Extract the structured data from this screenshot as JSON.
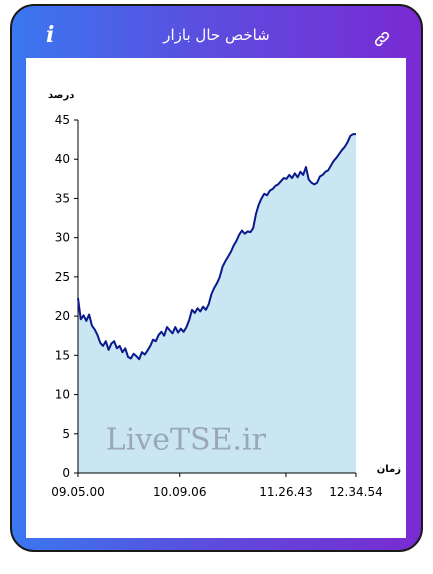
{
  "header": {
    "title": "شاخص حال بازار",
    "info_icon": "info-icon",
    "link_icon": "link-icon"
  },
  "colors": {
    "line": "#0a1a8c",
    "fill": "#c9e6f2",
    "gradient_start": "#3a78f0",
    "gradient_end": "#7a2ad2"
  },
  "watermark": "LiveTSE.ir",
  "chart_data": {
    "type": "area",
    "ylabel": "درصد",
    "xlabel": "زمان",
    "ylim": [
      0,
      45
    ],
    "yticks": [
      "0",
      "5",
      "10",
      "15",
      "20",
      "25",
      "30",
      "35",
      "40",
      "45"
    ],
    "xticks": [
      "09.05.00",
      "10.09.06",
      "11.26.43",
      "12.34.54"
    ],
    "grid": false,
    "x_index_range": [
      0,
      100
    ],
    "xtick_positions": [
      0,
      36.6,
      74.8,
      100
    ],
    "series": [
      {
        "x": [
          0,
          1,
          2,
          3,
          4,
          5,
          6,
          7,
          8,
          9,
          10,
          11,
          12,
          13,
          14,
          15,
          16,
          17,
          18,
          19,
          20,
          21,
          22,
          23,
          24,
          25,
          26,
          27,
          28,
          29,
          30,
          31,
          32,
          33,
          34,
          35,
          36,
          37,
          38,
          39,
          40,
          41,
          42,
          43,
          44,
          45,
          46,
          47,
          48,
          49,
          50,
          51,
          52,
          53,
          54,
          55,
          56,
          57,
          58,
          59,
          60,
          61,
          62,
          63,
          64,
          65,
          66,
          67,
          68,
          69,
          70,
          71,
          72,
          73,
          74,
          75,
          76,
          77,
          78,
          79,
          80,
          81,
          82,
          83,
          84,
          85,
          86,
          87,
          88,
          89,
          90,
          91,
          92,
          93,
          94,
          95,
          96,
          97,
          98,
          99,
          100
        ],
        "y": [
          22.3,
          19.6,
          20.1,
          19.4,
          20.2,
          18.8,
          18.3,
          17.6,
          16.6,
          16.2,
          16.8,
          15.7,
          16.5,
          16.8,
          15.9,
          16.2,
          15.4,
          15.9,
          14.8,
          14.6,
          15.2,
          14.9,
          14.5,
          15.4,
          15.1,
          15.6,
          16.2,
          17.0,
          16.8,
          17.6,
          18.0,
          17.5,
          18.6,
          18.2,
          17.8,
          18.6,
          17.9,
          18.4,
          18.0,
          18.6,
          19.5,
          20.8,
          20.4,
          21.0,
          20.6,
          21.2,
          20.8,
          21.5,
          22.8,
          23.6,
          24.2,
          25.0,
          26.3,
          27.0,
          27.6,
          28.2,
          29.0,
          29.6,
          30.4,
          30.9,
          30.5,
          30.8,
          30.7,
          31.2,
          33.0,
          34.2,
          35.0,
          35.6,
          35.4,
          36.0,
          36.2,
          36.6,
          36.8,
          37.2,
          37.6,
          37.5,
          38.0,
          37.6,
          38.2,
          37.7,
          38.4,
          38.0,
          39.0,
          37.4,
          37.0,
          36.8,
          37.0,
          37.8,
          38.0,
          38.4,
          38.6,
          39.2,
          39.8,
          40.2,
          40.7,
          41.2,
          41.6,
          42.2,
          43.0,
          43.2,
          43.2
        ]
      }
    ]
  }
}
